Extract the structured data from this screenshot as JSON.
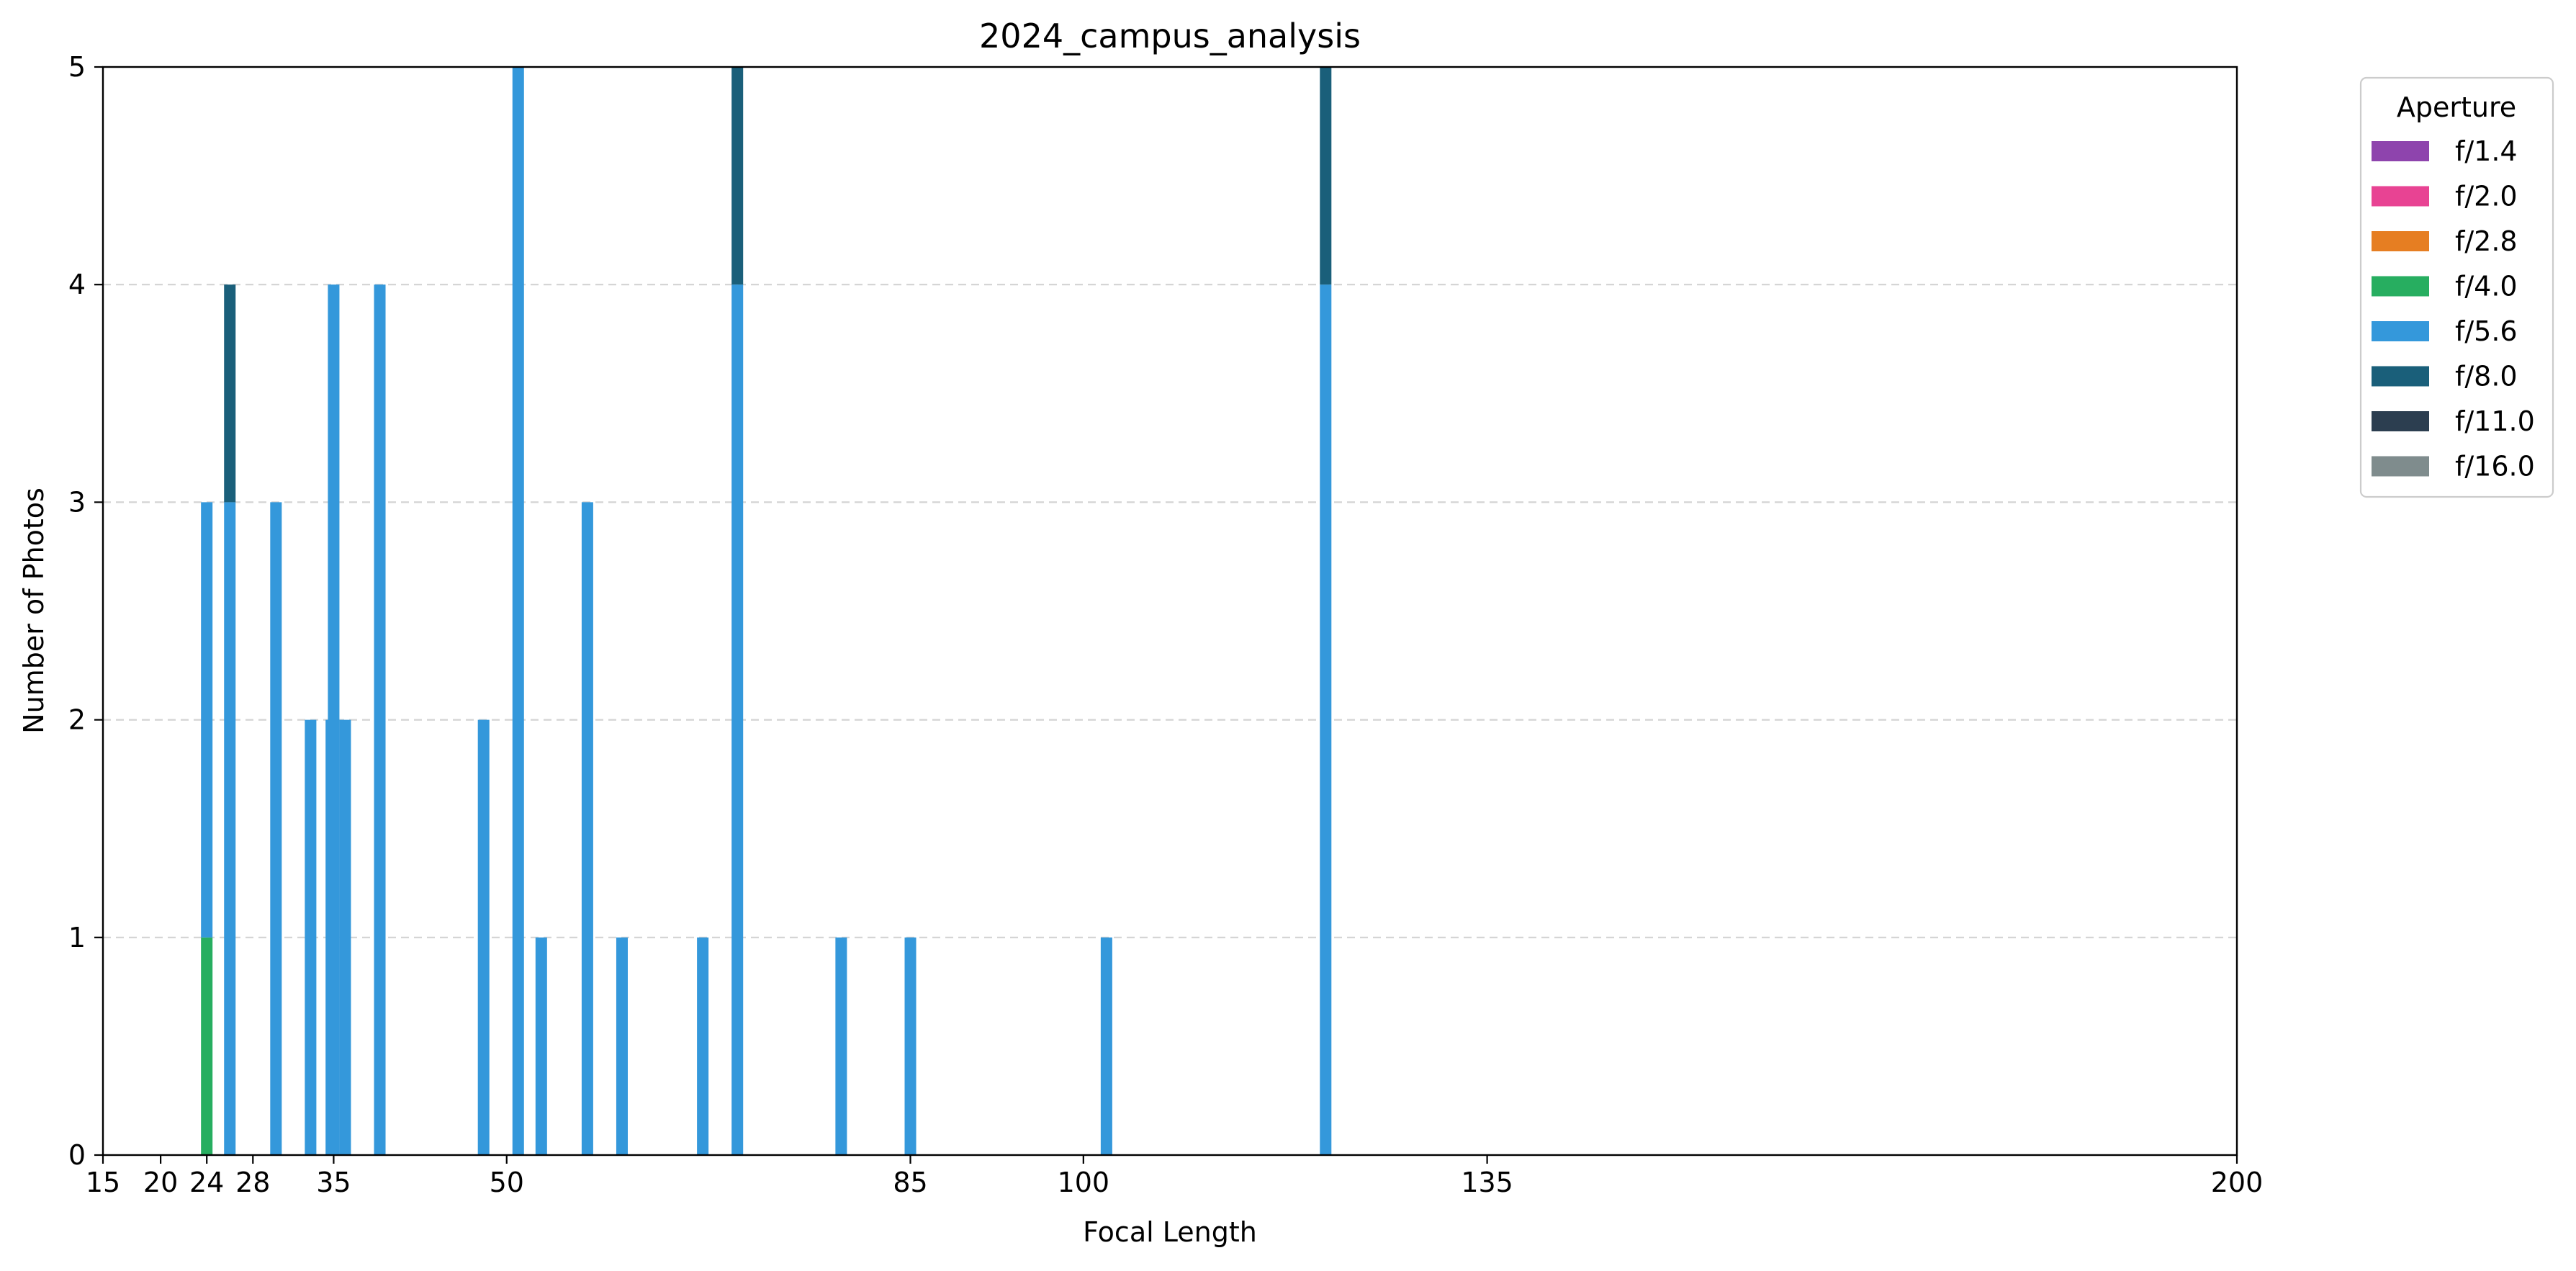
{
  "chart_data": {
    "type": "bar",
    "stacked": true,
    "title": "2024_campus_analysis",
    "xlabel": "Focal Length",
    "ylabel": "Number of Photos",
    "xlim": [
      15,
      200
    ],
    "ylim": [
      0,
      5
    ],
    "xticks": [
      15,
      20,
      24,
      28,
      35,
      50,
      85,
      100,
      135,
      200
    ],
    "yticks": [
      0,
      1,
      2,
      3,
      4,
      5
    ],
    "grid": "y-dashed",
    "bar_width": 1,
    "legend": {
      "title": "Aperture",
      "placement": "outside-top-right",
      "entries": [
        {
          "label": "f/1.4",
          "color": "#8e44ad"
        },
        {
          "label": "f/2.0",
          "color": "#e84393"
        },
        {
          "label": "f/2.8",
          "color": "#e67e22"
        },
        {
          "label": "f/4.0",
          "color": "#27ae60"
        },
        {
          "label": "f/5.6",
          "color": "#3498db"
        },
        {
          "label": "f/8.0",
          "color": "#1a5f7a"
        },
        {
          "label": "f/11.0",
          "color": "#2c3e50"
        },
        {
          "label": "f/16.0",
          "color": "#7f8c8d"
        }
      ]
    },
    "x": [
      24,
      26,
      30,
      33,
      35,
      36,
      39,
      48,
      51,
      53,
      57,
      60,
      67,
      70,
      79,
      85,
      102,
      121
    ],
    "series": [
      {
        "name": "f/1.4",
        "values": [
          0,
          0,
          0,
          0,
          0,
          0,
          0,
          0,
          0,
          0,
          0,
          0,
          0,
          0,
          0,
          0,
          0,
          0
        ]
      },
      {
        "name": "f/2.0",
        "values": [
          0,
          0,
          0,
          0,
          0,
          0,
          0,
          0,
          0,
          0,
          0,
          0,
          0,
          0,
          0,
          0,
          0,
          0
        ]
      },
      {
        "name": "f/2.8",
        "values": [
          0,
          0,
          0,
          0,
          0,
          0,
          0,
          0,
          0,
          0,
          0,
          0,
          0,
          0,
          0,
          0,
          0,
          0
        ]
      },
      {
        "name": "f/4.0",
        "values": [
          1,
          0,
          0,
          0,
          0,
          0,
          0,
          0,
          0,
          0,
          0,
          0,
          0,
          0,
          0,
          0,
          0,
          0
        ]
      },
      {
        "name": "f/5.6",
        "values": [
          2,
          3,
          3,
          2,
          4,
          2,
          4,
          2,
          5,
          1,
          3,
          1,
          1,
          4,
          1,
          1,
          1,
          4
        ]
      },
      {
        "name": "f/8.0",
        "values": [
          0,
          1,
          0,
          0,
          0,
          0,
          0,
          0,
          0,
          0,
          0,
          0,
          0,
          1,
          0,
          0,
          0,
          1
        ]
      },
      {
        "name": "f/11.0",
        "values": [
          0,
          0,
          0,
          0,
          0,
          0,
          0,
          0,
          0,
          0,
          0,
          0,
          0,
          0,
          0,
          0,
          0,
          0
        ]
      },
      {
        "name": "f/16.0",
        "values": [
          0,
          0,
          0,
          0,
          0,
          0,
          0,
          0,
          0,
          0,
          0,
          0,
          0,
          0,
          0,
          0,
          0,
          0
        ]
      }
    ],
    "extra_bars": [
      {
        "x": 34.8,
        "series": "f/5.6",
        "value": 2
      }
    ]
  }
}
